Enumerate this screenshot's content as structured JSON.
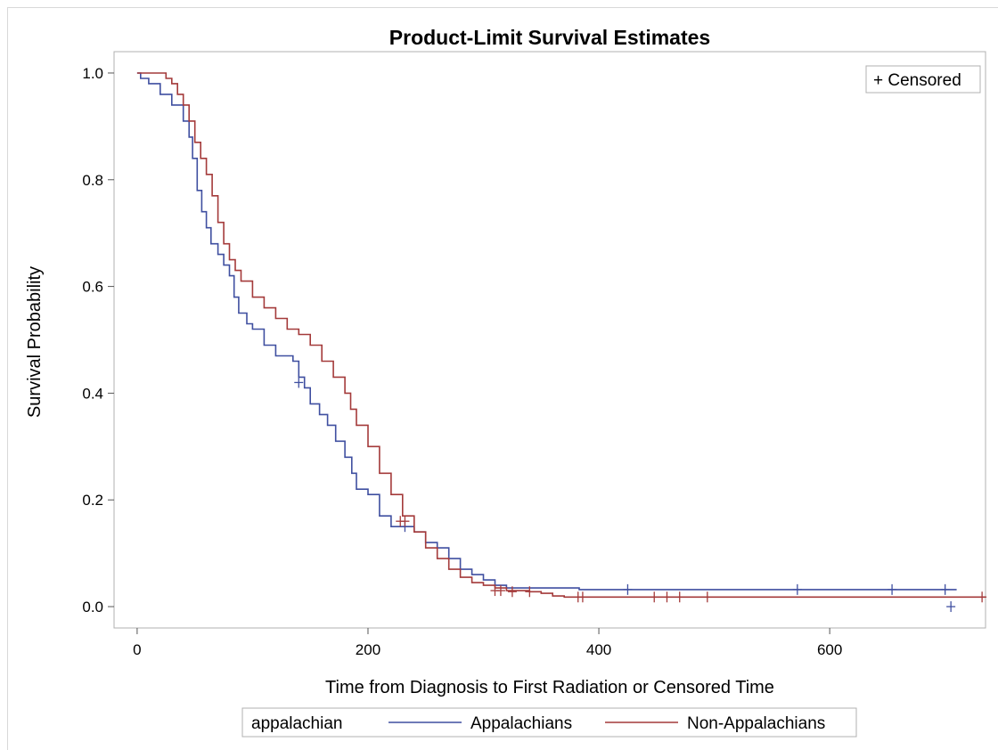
{
  "chart_data": {
    "type": "line",
    "title": "Product-Limit Survival Estimates",
    "xlabel": "Time from Diagnosis to First Radiation or Censored Time",
    "ylabel": "Survival Probability",
    "xlim": [
      -20,
      735
    ],
    "ylim": [
      -0.04,
      1.04
    ],
    "xticks": [
      0,
      200,
      400,
      600
    ],
    "xtick_labels": [
      "0",
      "200",
      "400",
      "600"
    ],
    "yticks": [
      0.0,
      0.2,
      0.4,
      0.6,
      0.8,
      1.0
    ],
    "ytick_labels": [
      "0.0",
      "0.2",
      "0.4",
      "0.6",
      "0.8",
      "1.0"
    ],
    "censored_legend": "+ Censored",
    "legend_title": "appalachian",
    "legend_position": "bottom",
    "series": [
      {
        "name": "Appalachians",
        "color": "#3f4fa0",
        "points": [
          [
            0,
            1.0
          ],
          [
            3,
            0.99
          ],
          [
            10,
            0.98
          ],
          [
            20,
            0.96
          ],
          [
            30,
            0.94
          ],
          [
            40,
            0.91
          ],
          [
            45,
            0.88
          ],
          [
            48,
            0.84
          ],
          [
            52,
            0.78
          ],
          [
            56,
            0.74
          ],
          [
            60,
            0.71
          ],
          [
            64,
            0.68
          ],
          [
            70,
            0.66
          ],
          [
            75,
            0.64
          ],
          [
            80,
            0.62
          ],
          [
            84,
            0.58
          ],
          [
            88,
            0.55
          ],
          [
            95,
            0.53
          ],
          [
            100,
            0.52
          ],
          [
            110,
            0.49
          ],
          [
            120,
            0.47
          ],
          [
            130,
            0.47
          ],
          [
            135,
            0.46
          ],
          [
            140,
            0.43
          ],
          [
            145,
            0.41
          ],
          [
            150,
            0.38
          ],
          [
            158,
            0.36
          ],
          [
            165,
            0.34
          ],
          [
            172,
            0.31
          ],
          [
            180,
            0.28
          ],
          [
            186,
            0.25
          ],
          [
            190,
            0.22
          ],
          [
            200,
            0.21
          ],
          [
            210,
            0.17
          ],
          [
            220,
            0.15
          ],
          [
            240,
            0.14
          ],
          [
            250,
            0.12
          ],
          [
            260,
            0.11
          ],
          [
            270,
            0.09
          ],
          [
            280,
            0.07
          ],
          [
            290,
            0.06
          ],
          [
            300,
            0.05
          ],
          [
            310,
            0.04
          ],
          [
            320,
            0.035
          ],
          [
            380,
            0.035
          ],
          [
            383,
            0.032
          ],
          [
            710,
            0.032
          ]
        ],
        "censored": [
          [
            140,
            0.42
          ],
          [
            232,
            0.15
          ],
          [
            425,
            0.032
          ],
          [
            572,
            0.032
          ],
          [
            654,
            0.032
          ],
          [
            700,
            0.032
          ],
          [
            705,
            0.0
          ]
        ]
      },
      {
        "name": "Non-Appalachians",
        "color": "#a43a3a",
        "points": [
          [
            0,
            1.0
          ],
          [
            10,
            1.0
          ],
          [
            20,
            1.0
          ],
          [
            25,
            0.99
          ],
          [
            30,
            0.98
          ],
          [
            35,
            0.96
          ],
          [
            40,
            0.94
          ],
          [
            45,
            0.91
          ],
          [
            50,
            0.87
          ],
          [
            55,
            0.84
          ],
          [
            60,
            0.81
          ],
          [
            65,
            0.77
          ],
          [
            70,
            0.72
          ],
          [
            75,
            0.68
          ],
          [
            80,
            0.65
          ],
          [
            85,
            0.63
          ],
          [
            90,
            0.61
          ],
          [
            100,
            0.58
          ],
          [
            110,
            0.56
          ],
          [
            120,
            0.54
          ],
          [
            130,
            0.52
          ],
          [
            140,
            0.51
          ],
          [
            150,
            0.49
          ],
          [
            160,
            0.46
          ],
          [
            170,
            0.43
          ],
          [
            180,
            0.4
          ],
          [
            185,
            0.37
          ],
          [
            190,
            0.34
          ],
          [
            200,
            0.3
          ],
          [
            210,
            0.25
          ],
          [
            220,
            0.21
          ],
          [
            230,
            0.17
          ],
          [
            240,
            0.14
          ],
          [
            250,
            0.11
          ],
          [
            260,
            0.09
          ],
          [
            270,
            0.07
          ],
          [
            280,
            0.055
          ],
          [
            290,
            0.045
          ],
          [
            300,
            0.04
          ],
          [
            310,
            0.035
          ],
          [
            320,
            0.03
          ],
          [
            330,
            0.03
          ],
          [
            340,
            0.028
          ],
          [
            350,
            0.025
          ],
          [
            360,
            0.02
          ],
          [
            370,
            0.018
          ],
          [
            735,
            0.018
          ]
        ],
        "censored": [
          [
            228,
            0.16
          ],
          [
            232,
            0.16
          ],
          [
            310,
            0.03
          ],
          [
            315,
            0.03
          ],
          [
            325,
            0.028
          ],
          [
            340,
            0.028
          ],
          [
            382,
            0.018
          ],
          [
            386,
            0.018
          ],
          [
            448,
            0.018
          ],
          [
            459,
            0.018
          ],
          [
            470,
            0.018
          ],
          [
            494,
            0.018
          ],
          [
            732,
            0.018
          ]
        ]
      }
    ]
  }
}
